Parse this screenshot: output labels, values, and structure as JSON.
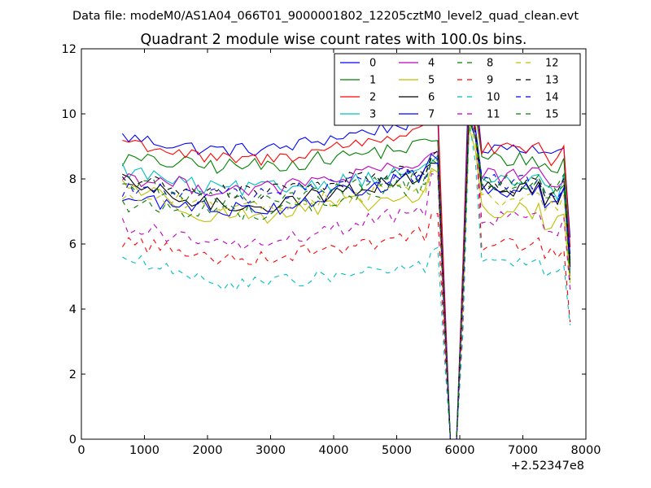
{
  "suptitle": "Data file: modeM0/AS1A04_066T01_9000001802_12205cztM0_level2_quad_clean.evt",
  "chart_data": {
    "type": "line",
    "title": "Quadrant 2 module wise count rates with 100.0s bins.",
    "xlabel": "",
    "ylabel": "",
    "x_offset_label": "+2.52347e8",
    "xlim": [
      0,
      8000
    ],
    "ylim": [
      0,
      12
    ],
    "x_ticks": [
      0,
      1000,
      2000,
      3000,
      4000,
      5000,
      6000,
      7000,
      8000
    ],
    "y_ticks": [
      0,
      2,
      4,
      6,
      8,
      10,
      12
    ],
    "grid": false,
    "legend_position": "top-right",
    "legend_columns": 4,
    "x_start": 650,
    "x_step": 100,
    "x_end": 7750,
    "gap_start": 5750,
    "gap_end": 6050,
    "gap_value": 0,
    "series": [
      {
        "name": "0",
        "color": "#0000ff",
        "style": "solid",
        "early": 9.3,
        "mid": 8.9,
        "late": 9.9,
        "drop": 10.0,
        "peak": 11.4,
        "post": 9.0,
        "end": 6.2,
        "noise": 0.22
      },
      {
        "name": "1",
        "color": "#008000",
        "style": "solid",
        "early": 8.6,
        "mid": 8.4,
        "late": 9.1,
        "drop": 9.2,
        "peak": 10.6,
        "post": 8.6,
        "end": 5.5,
        "noise": 0.25
      },
      {
        "name": "2",
        "color": "#ff0000",
        "style": "solid",
        "early": 9.2,
        "mid": 8.6,
        "late": 9.6,
        "drop": 10.3,
        "peak": 10.9,
        "post": 8.9,
        "end": 5.9,
        "noise": 0.22
      },
      {
        "name": "3",
        "color": "#00bfbf",
        "style": "solid",
        "early": 8.3,
        "mid": 7.7,
        "late": 8.3,
        "drop": 8.6,
        "peak": 10.2,
        "post": 7.9,
        "end": 5.2,
        "noise": 0.25
      },
      {
        "name": "4",
        "color": "#bf00bf",
        "style": "solid",
        "early": 8.1,
        "mid": 7.7,
        "late": 8.5,
        "drop": 8.9,
        "peak": 10.1,
        "post": 8.1,
        "end": 5.0,
        "noise": 0.25
      },
      {
        "name": "5",
        "color": "#bfbf00",
        "style": "solid",
        "early": 7.9,
        "mid": 6.9,
        "late": 7.5,
        "drop": 8.2,
        "peak": 9.6,
        "post": 7.0,
        "end": 4.8,
        "noise": 0.28
      },
      {
        "name": "6",
        "color": "#000000",
        "style": "solid",
        "early": 7.9,
        "mid": 7.2,
        "late": 8.2,
        "drop": 8.4,
        "peak": 9.9,
        "post": 7.7,
        "end": 5.4,
        "noise": 0.25
      },
      {
        "name": "7",
        "color": "#0000ff",
        "style": "solid",
        "early": 7.4,
        "mid": 7.1,
        "late": 8.2,
        "drop": 8.7,
        "peak": 9.9,
        "post": 7.6,
        "end": 5.7,
        "noise": 0.25
      },
      {
        "name": "8",
        "color": "#008000",
        "style": "dashed",
        "early": 7.2,
        "mid": 7.0,
        "late": 7.9,
        "drop": 8.6,
        "peak": 10.3,
        "post": 7.9,
        "end": 5.0,
        "noise": 0.28
      },
      {
        "name": "9",
        "color": "#ff0000",
        "style": "dashed",
        "early": 6.1,
        "mid": 5.6,
        "late": 6.4,
        "drop": 6.9,
        "peak": 10.9,
        "post": 6.0,
        "end": 3.6,
        "noise": 0.25
      },
      {
        "name": "10",
        "color": "#00bfbf",
        "style": "dashed",
        "early": 5.6,
        "mid": 4.8,
        "late": 5.4,
        "drop": 5.8,
        "peak": 9.7,
        "post": 5.4,
        "end": 3.5,
        "noise": 0.22
      },
      {
        "name": "11",
        "color": "#bf00bf",
        "style": "dashed",
        "early": 6.6,
        "mid": 6.0,
        "late": 7.2,
        "drop": 8.2,
        "peak": 10.4,
        "post": 6.8,
        "end": 4.6,
        "noise": 0.25
      },
      {
        "name": "12",
        "color": "#bfbf00",
        "style": "dashed",
        "early": 7.5,
        "mid": 7.2,
        "late": 7.8,
        "drop": 8.3,
        "peak": 9.8,
        "post": 7.4,
        "end": 4.9,
        "noise": 0.25
      },
      {
        "name": "13",
        "color": "#000000",
        "style": "dashed",
        "early": 8.0,
        "mid": 7.6,
        "late": 8.4,
        "drop": 8.8,
        "peak": 10.1,
        "post": 7.8,
        "end": 5.3,
        "noise": 0.25
      },
      {
        "name": "14",
        "color": "#0000ff",
        "style": "dashed",
        "early": 7.7,
        "mid": 7.5,
        "late": 8.3,
        "drop": 8.6,
        "peak": 10.2,
        "post": 7.9,
        "end": 5.6,
        "noise": 0.25
      },
      {
        "name": "15",
        "color": "#008000",
        "style": "dashed",
        "early": 7.9,
        "mid": 7.4,
        "late": 8.1,
        "drop": 8.5,
        "peak": 9.9,
        "post": 7.9,
        "end": 4.9,
        "noise": 0.25
      }
    ]
  }
}
